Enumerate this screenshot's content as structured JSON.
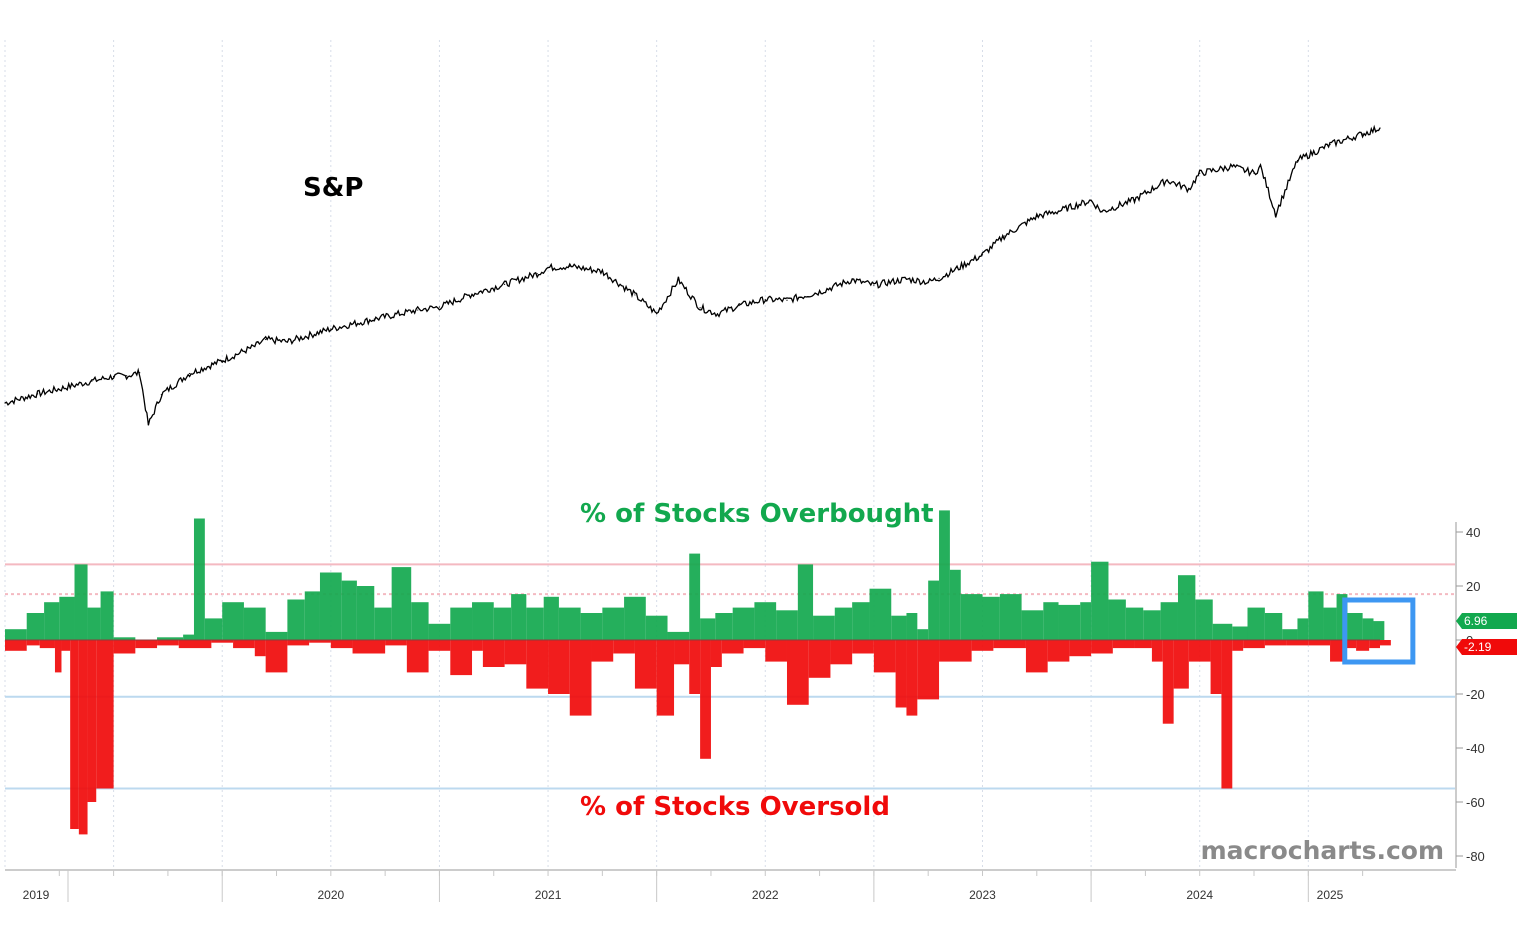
{
  "colors": {
    "overbought": "#12a84e",
    "oversold": "#f00a0a",
    "price_line": "#000000",
    "threshold_pink": "#f4b9c1",
    "threshold_blue": "#bcd9ef",
    "highlight_box": "#3d97f2",
    "watermark": "#8a8a8a"
  },
  "watermark": "macrocharts.com",
  "chart_data": [
    {
      "type": "line",
      "title": "S&P",
      "x_range": [
        2019.0,
        2025.45
      ],
      "x": [
        2019.0,
        2019.15,
        2019.3,
        2019.4,
        2019.5,
        2019.56,
        2019.62,
        2019.66,
        2019.72,
        2019.85,
        2020.0,
        2020.15,
        2020.2,
        2020.3,
        2020.5,
        2020.7,
        2020.9,
        2021.0,
        2021.15,
        2021.3,
        2021.45,
        2021.5,
        2021.6,
        2021.75,
        2021.9,
        2022.0,
        2022.1,
        2022.2,
        2022.28,
        2022.38,
        2022.5,
        2022.6,
        2022.75,
        2022.9,
        2023.0,
        2023.15,
        2023.25,
        2023.3,
        2023.5,
        2023.6,
        2023.75,
        2023.85,
        2024.0,
        2024.05,
        2024.2,
        2024.35,
        2024.45,
        2024.5,
        2024.65,
        2024.75,
        2024.78,
        2024.85,
        2024.95,
        2025.1,
        2025.25,
        2025.33
      ],
      "y": [
        2490,
        2610,
        2710,
        2780,
        2840,
        2850,
        2890,
        2200,
        2600,
        2880,
        3050,
        3240,
        3330,
        3300,
        3470,
        3600,
        3720,
        3760,
        3930,
        4060,
        4200,
        4280,
        4300,
        4230,
        3920,
        3670,
        4120,
        3750,
        3670,
        3780,
        3860,
        3850,
        3960,
        4120,
        4050,
        4130,
        4090,
        4140,
        4450,
        4700,
        4960,
        5030,
        5170,
        5020,
        5180,
        5440,
        5320,
        5530,
        5620,
        5530,
        5620,
        4990,
        5700,
        5910,
        6050,
        6130
      ],
      "ylim": [
        2000,
        6500
      ]
    },
    {
      "type": "bar",
      "series": [
        {
          "name": "% of Stocks Overbought",
          "x": [
            2019.0,
            2019.1,
            2019.18,
            2019.25,
            2019.32,
            2019.38,
            2019.44,
            2019.5,
            2019.6,
            2019.7,
            2019.82,
            2019.87,
            2019.92,
            2020.0,
            2020.1,
            2020.2,
            2020.3,
            2020.38,
            2020.45,
            2020.55,
            2020.62,
            2020.7,
            2020.78,
            2020.87,
            2020.95,
            2021.05,
            2021.15,
            2021.25,
            2021.33,
            2021.4,
            2021.48,
            2021.55,
            2021.65,
            2021.75,
            2021.85,
            2021.95,
            2022.05,
            2022.15,
            2022.2,
            2022.27,
            2022.35,
            2022.45,
            2022.55,
            2022.65,
            2022.72,
            2022.82,
            2022.9,
            2022.98,
            2023.08,
            2023.15,
            2023.2,
            2023.25,
            2023.3,
            2023.35,
            2023.4,
            2023.5,
            2023.58,
            2023.68,
            2023.78,
            2023.85,
            2023.95,
            2024.0,
            2024.08,
            2024.16,
            2024.24,
            2024.32,
            2024.4,
            2024.48,
            2024.56,
            2024.65,
            2024.72,
            2024.8,
            2024.88,
            2024.95,
            2025.0,
            2025.07,
            2025.13,
            2025.18,
            2025.25,
            2025.3
          ],
          "values": [
            4,
            10,
            14,
            16,
            28,
            12,
            18,
            1,
            0,
            1,
            2,
            45,
            8,
            14,
            12,
            3,
            15,
            18,
            25,
            22,
            20,
            12,
            27,
            14,
            6,
            12,
            14,
            12,
            17,
            12,
            16,
            12,
            10,
            12,
            16,
            9,
            3,
            32,
            8,
            10,
            12,
            14,
            11,
            28,
            9,
            12,
            14,
            19,
            9,
            10,
            4,
            22,
            48,
            26,
            17,
            16,
            17,
            11,
            14,
            13,
            14,
            29,
            15,
            12,
            11,
            14,
            24,
            15,
            6,
            5,
            12,
            10,
            4,
            8,
            18,
            12,
            17,
            10,
            8,
            7
          ]
        },
        {
          "name": "% of Stocks Oversold",
          "x": [
            2019.0,
            2019.1,
            2019.16,
            2019.23,
            2019.26,
            2019.3,
            2019.34,
            2019.38,
            2019.42,
            2019.5,
            2019.6,
            2019.7,
            2019.8,
            2019.95,
            2020.05,
            2020.15,
            2020.2,
            2020.3,
            2020.4,
            2020.5,
            2020.6,
            2020.75,
            2020.85,
            2020.95,
            2021.05,
            2021.15,
            2021.2,
            2021.3,
            2021.4,
            2021.5,
            2021.6,
            2021.7,
            2021.8,
            2021.9,
            2022.0,
            2022.08,
            2022.15,
            2022.2,
            2022.25,
            2022.3,
            2022.4,
            2022.5,
            2022.6,
            2022.7,
            2022.8,
            2022.9,
            2023.0,
            2023.1,
            2023.15,
            2023.2,
            2023.3,
            2023.45,
            2023.55,
            2023.7,
            2023.8,
            2023.9,
            2024.0,
            2024.1,
            2024.2,
            2024.28,
            2024.33,
            2024.38,
            2024.45,
            2024.55,
            2024.6,
            2024.65,
            2024.7,
            2024.8,
            2024.9,
            2025.0,
            2025.1,
            2025.16,
            2025.22,
            2025.28,
            2025.33
          ],
          "values": [
            -4,
            -2,
            -3,
            -12,
            -4,
            -70,
            -72,
            -60,
            -55,
            -5,
            -3,
            -2,
            -3,
            -1,
            -3,
            -6,
            -12,
            -2,
            -1,
            -3,
            -5,
            -2,
            -12,
            -4,
            -13,
            -4,
            -10,
            -9,
            -18,
            -20,
            -28,
            -8,
            -5,
            -18,
            -28,
            -9,
            -20,
            -44,
            -10,
            -5,
            -3,
            -8,
            -24,
            -14,
            -9,
            -5,
            -12,
            -25,
            -28,
            -22,
            -8,
            -4,
            -3,
            -12,
            -8,
            -6,
            -5,
            -3,
            -3,
            -8,
            -31,
            -18,
            -8,
            -20,
            -55,
            -4,
            -3,
            -2,
            -2,
            -2,
            -8,
            -3,
            -4,
            -3,
            -2
          ]
        }
      ],
      "title_top": "% of Stocks Overbought",
      "title_bottom": "% of Stocks Oversold",
      "x_range": [
        2019.0,
        2025.45
      ],
      "ylim": [
        -80,
        40
      ],
      "yticks": [
        "40",
        "20",
        "0",
        "-20",
        "-40",
        "-60",
        "-80"
      ],
      "tick_values": [
        40,
        20,
        0,
        -20,
        -40,
        -60,
        -80
      ],
      "threshold_lines": [
        28,
        17,
        -21,
        -55
      ],
      "last_values": {
        "overbought": "6.96",
        "oversold": "-2.19"
      },
      "highlight_range": [
        2025.2,
        2025.38
      ],
      "x_tick_labels": [
        "2019",
        "2020",
        "2021",
        "2022",
        "2023",
        "2024",
        "2025"
      ]
    }
  ]
}
